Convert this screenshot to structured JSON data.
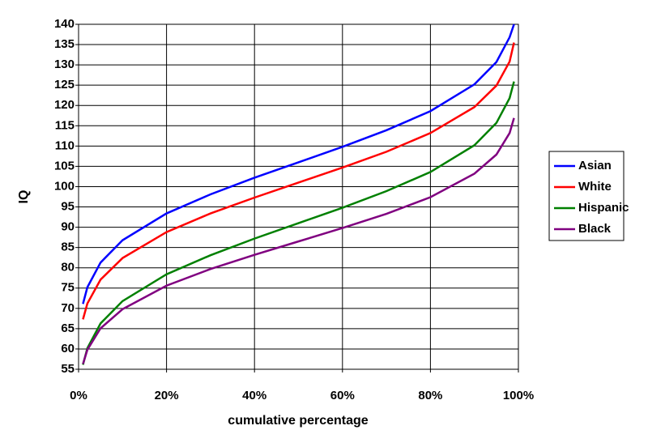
{
  "chart_data": {
    "type": "line",
    "x_label": "cumulative percentage",
    "y_label": "IQ",
    "x": [
      1,
      2,
      5,
      10,
      20,
      30,
      40,
      50,
      60,
      70,
      80,
      90,
      95,
      98,
      99
    ],
    "series": [
      {
        "name": "Asian",
        "color": "#0000ff",
        "values": [
          71.1,
          75.2,
          81.3,
          86.8,
          93.4,
          98.1,
          102.2,
          106,
          109.8,
          113.9,
          118.6,
          125.2,
          130.7,
          136.8,
          140
        ]
      },
      {
        "name": "White",
        "color": "#ff0000",
        "values": [
          67.3,
          71.2,
          77.1,
          82.4,
          88.8,
          93.4,
          97.3,
          101,
          104.7,
          108.6,
          113.2,
          119.6,
          124.9,
          130.8,
          135.5
        ]
      },
      {
        "name": "Hispanic",
        "color": "#008000",
        "values": [
          56.1,
          60.2,
          66.3,
          71.8,
          78.4,
          83.1,
          87.2,
          91,
          94.8,
          98.9,
          103.6,
          110.2,
          115.7,
          121.8,
          125.9
        ]
      },
      {
        "name": "Black",
        "color": "#800080",
        "values": [
          56.3,
          59.8,
          65.1,
          69.8,
          75.6,
          79.7,
          83.2,
          86.5,
          89.8,
          93.3,
          97.4,
          103.2,
          107.9,
          113.2,
          116.9
        ]
      }
    ],
    "xlim": [
      0,
      100
    ],
    "xticks": [
      {
        "value": 0,
        "label": "0%"
      },
      {
        "value": 20,
        "label": "20%"
      },
      {
        "value": 40,
        "label": "40%"
      },
      {
        "value": 60,
        "label": "60%"
      },
      {
        "value": 80,
        "label": "80%"
      },
      {
        "value": 100,
        "label": "100%"
      }
    ],
    "ylim": [
      55,
      140
    ],
    "yticks": [
      55,
      60,
      65,
      70,
      75,
      80,
      85,
      90,
      95,
      100,
      105,
      110,
      115,
      120,
      125,
      130,
      135,
      140
    ],
    "grid": true,
    "legend_position": "right"
  }
}
